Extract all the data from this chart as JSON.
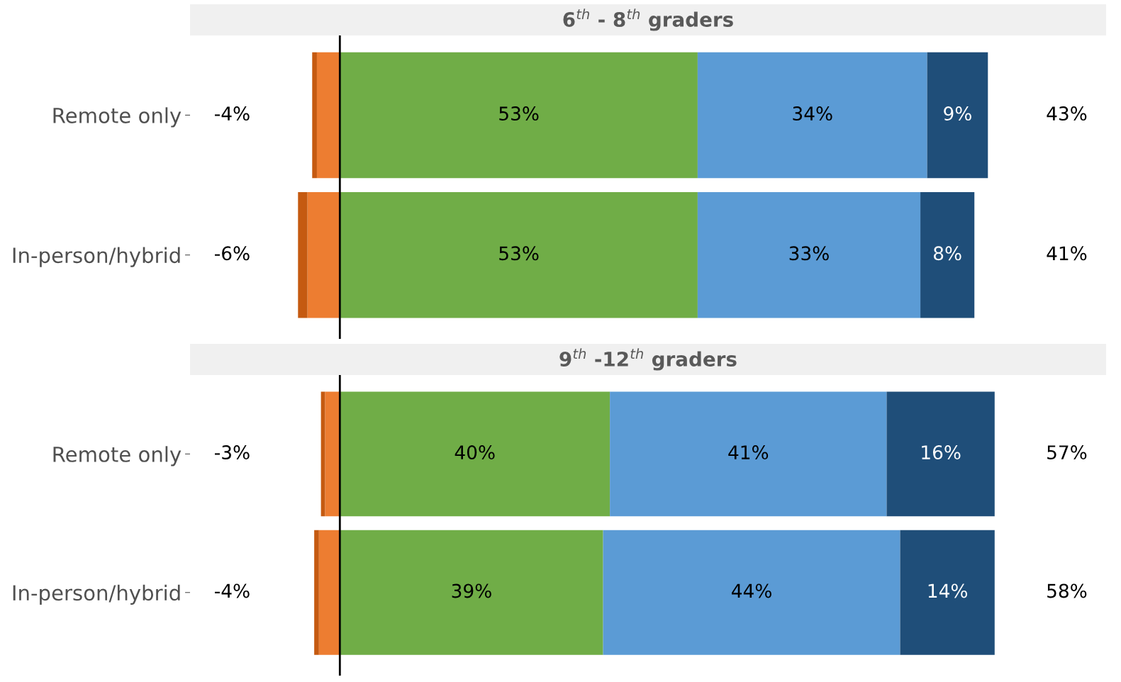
{
  "chart_data": [
    {
      "type": "bar",
      "orientation": "horizontal",
      "stacked": true,
      "title": "6$^{th}$ - 8$^{th}$ graders",
      "categories": [
        "Remote only",
        "In-person/hybrid"
      ],
      "tick_labels": "y",
      "grid": false,
      "legend": false,
      "series": [
        {
          "color": "#ed7d31",
          "values": [
            -3.4,
            -4.8
          ]
        },
        {
          "color": "#c55a11",
          "values": [
            -0.7,
            -1.4
          ]
        },
        {
          "color": "#70ad47",
          "values": [
            53,
            53
          ],
          "value_labels": [
            "53%",
            "53%"
          ]
        },
        {
          "color": "#5b9bd5",
          "values": [
            34,
            33
          ],
          "value_labels": [
            "34%",
            "33%"
          ]
        },
        {
          "color": "#1f4e79",
          "values": [
            9,
            8
          ],
          "value_labels": [
            "9%",
            "8%"
          ]
        }
      ],
      "ref_lines": [
        {
          "axis": "x",
          "value": 0,
          "color": "#000000"
        }
      ],
      "annotations": [
        "-4%",
        "-6%",
        "43%",
        "41%"
      ]
    },
    {
      "type": "bar",
      "orientation": "horizontal",
      "stacked": true,
      "title": "9$^{th}$ -12$^{th}$ graders",
      "categories": [
        "Remote only",
        "In-person/hybrid"
      ],
      "tick_labels": "y",
      "grid": false,
      "legend": false,
      "series": [
        {
          "color": "#ed7d31",
          "values": [
            -2.2,
            -3.1
          ]
        },
        {
          "color": "#c55a11",
          "values": [
            -0.6,
            -0.7
          ]
        },
        {
          "color": "#70ad47",
          "values": [
            40,
            39
          ],
          "value_labels": [
            "40%",
            "39%"
          ]
        },
        {
          "color": "#5b9bd5",
          "values": [
            41,
            44
          ],
          "value_labels": [
            "41%",
            "44%"
          ]
        },
        {
          "color": "#1f4e79",
          "values": [
            16,
            14
          ],
          "value_labels": [
            "16%",
            "14%"
          ]
        }
      ],
      "ref_lines": [
        {
          "axis": "x",
          "value": 0,
          "color": "#000000"
        }
      ],
      "annotations": [
        "-3%",
        "-4%",
        "57%",
        "58%"
      ]
    }
  ]
}
